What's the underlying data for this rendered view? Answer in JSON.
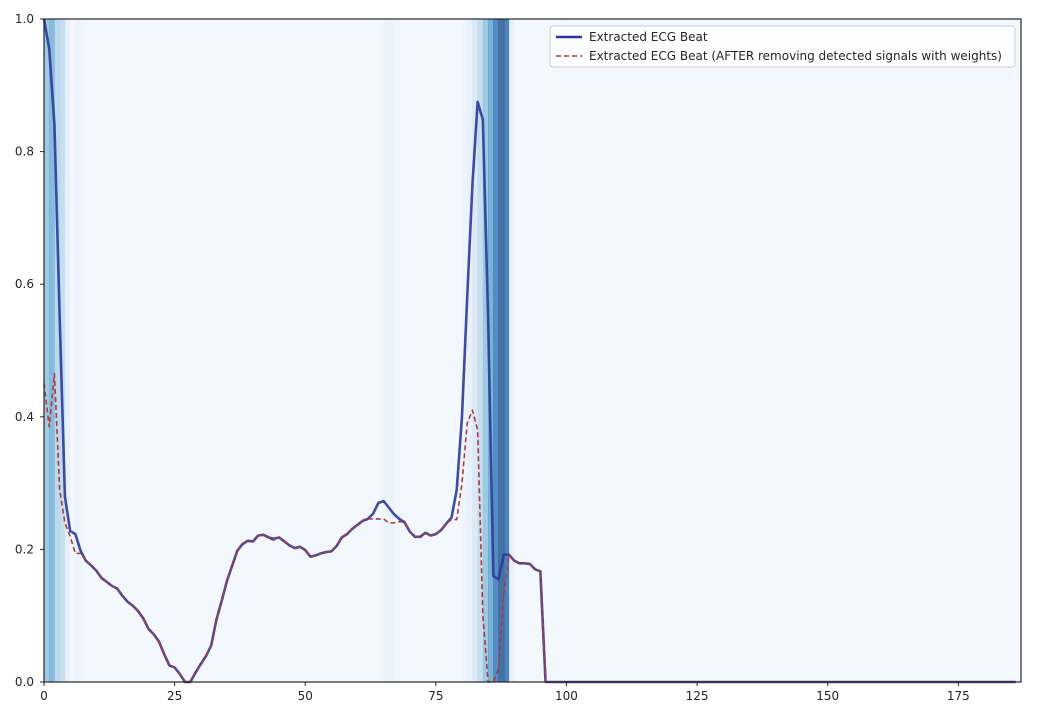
{
  "chart_data": {
    "type": "line",
    "title": "",
    "xlabel": "",
    "ylabel": "",
    "xlim": [
      0,
      187
    ],
    "ylim": [
      0,
      1
    ],
    "xticks": [
      0,
      25,
      50,
      75,
      100,
      125,
      150,
      175
    ],
    "yticks": [
      0.0,
      0.2,
      0.4,
      0.6,
      0.8,
      1.0
    ],
    "grid": false,
    "legend_position": "top-right",
    "background_heatmap": {
      "colormap": "Blues",
      "description_levels": "0 = lightest, 1 = darkest",
      "x": [
        0,
        1,
        2,
        3,
        4,
        5,
        6,
        7,
        8,
        9,
        10,
        11,
        12,
        13,
        14,
        15,
        16,
        17,
        18,
        19,
        20,
        21,
        22,
        23,
        24,
        25,
        26,
        27,
        28,
        29,
        30,
        31,
        32,
        33,
        34,
        35,
        36,
        37,
        38,
        39,
        40,
        41,
        42,
        43,
        44,
        45,
        46,
        47,
        48,
        49,
        50,
        51,
        52,
        53,
        54,
        55,
        56,
        57,
        58,
        59,
        60,
        61,
        62,
        63,
        64,
        65,
        66,
        67,
        68,
        69,
        70,
        71,
        72,
        73,
        74,
        75,
        76,
        77,
        78,
        79,
        80,
        81,
        82,
        83,
        84,
        85,
        86,
        87,
        88,
        89,
        90,
        91,
        92,
        93,
        94,
        95,
        96,
        97,
        98,
        99
      ],
      "weights": [
        0.45,
        0.55,
        0.35,
        0.3,
        0.1,
        0.02,
        0.08,
        0.04,
        0.02,
        0.02,
        0.03,
        0.02,
        0.02,
        0.02,
        0.02,
        0.02,
        0.02,
        0.02,
        0.02,
        0.02,
        0.02,
        0.02,
        0.02,
        0.02,
        0.02,
        0.02,
        0.02,
        0.02,
        0.02,
        0.02,
        0.02,
        0.02,
        0.02,
        0.02,
        0.02,
        0.02,
        0.02,
        0.02,
        0.02,
        0.02,
        0.02,
        0.02,
        0.03,
        0.03,
        0.03,
        0.03,
        0.02,
        0.02,
        0.02,
        0.02,
        0.02,
        0.02,
        0.02,
        0.02,
        0.02,
        0.02,
        0.02,
        0.02,
        0.02,
        0.02,
        0.02,
        0.02,
        0.02,
        0.02,
        0.04,
        0.06,
        0.08,
        0.05,
        0.03,
        0.02,
        0.02,
        0.02,
        0.02,
        0.02,
        0.02,
        0.02,
        0.02,
        0.02,
        0.02,
        0.02,
        0.06,
        0.1,
        0.18,
        0.3,
        0.45,
        0.6,
        0.8,
        0.95,
        0.85,
        0.1,
        0.02,
        0.02,
        0.02,
        0.02,
        0.02,
        0.02,
        0.02,
        0.02,
        0.02,
        0.02
      ]
    },
    "x": [
      0,
      1,
      2,
      3,
      4,
      5,
      6,
      7,
      8,
      9,
      10,
      11,
      12,
      13,
      14,
      15,
      16,
      17,
      18,
      19,
      20,
      21,
      22,
      23,
      24,
      25,
      26,
      27,
      28,
      29,
      30,
      31,
      32,
      33,
      34,
      35,
      36,
      37,
      38,
      39,
      40,
      41,
      42,
      43,
      44,
      45,
      46,
      47,
      48,
      49,
      50,
      51,
      52,
      53,
      54,
      55,
      56,
      57,
      58,
      59,
      60,
      61,
      62,
      63,
      64,
      65,
      66,
      67,
      68,
      69,
      70,
      71,
      72,
      73,
      74,
      75,
      76,
      77,
      78,
      79,
      80,
      81,
      82,
      83,
      84,
      85,
      86,
      87,
      88,
      89,
      90,
      91,
      92,
      93,
      94,
      95,
      96,
      97,
      186
    ],
    "series": [
      {
        "name": "Extracted ECG Beat",
        "color": "#2b3a9a",
        "style": "solid",
        "values": [
          1.0,
          0.955,
          0.84,
          0.55,
          0.28,
          0.228,
          0.223,
          0.198,
          0.183,
          0.176,
          0.168,
          0.157,
          0.151,
          0.145,
          0.141,
          0.13,
          0.121,
          0.115,
          0.107,
          0.096,
          0.08,
          0.072,
          0.061,
          0.042,
          0.025,
          0.022,
          0.012,
          0.0,
          0.0,
          0.014,
          0.027,
          0.039,
          0.055,
          0.094,
          0.122,
          0.152,
          0.175,
          0.198,
          0.208,
          0.213,
          0.212,
          0.221,
          0.222,
          0.218,
          0.216,
          0.218,
          0.212,
          0.206,
          0.202,
          0.204,
          0.199,
          0.189,
          0.191,
          0.194,
          0.196,
          0.197,
          0.205,
          0.218,
          0.223,
          0.231,
          0.237,
          0.243,
          0.246,
          0.254,
          0.27,
          0.273,
          0.263,
          0.253,
          0.246,
          0.241,
          0.227,
          0.219,
          0.219,
          0.225,
          0.221,
          0.223,
          0.229,
          0.239,
          0.248,
          0.29,
          0.4,
          0.58,
          0.75,
          0.875,
          0.848,
          0.55,
          0.16,
          0.155,
          0.192,
          0.192,
          0.183,
          0.179,
          0.179,
          0.178,
          0.17,
          0.167,
          0.0,
          0.0,
          0.0
        ]
      },
      {
        "name": "Extracted ECG Beat (AFTER removing detected signals with weights)",
        "color": "#b03a3a",
        "style": "dashed",
        "values": [
          0.45,
          0.385,
          0.465,
          0.29,
          0.24,
          0.22,
          0.194,
          0.194,
          0.183,
          0.176,
          0.168,
          0.157,
          0.151,
          0.145,
          0.141,
          0.13,
          0.121,
          0.115,
          0.107,
          0.096,
          0.08,
          0.072,
          0.061,
          0.042,
          0.025,
          0.022,
          0.012,
          0.0,
          0.0,
          0.014,
          0.027,
          0.039,
          0.055,
          0.094,
          0.122,
          0.152,
          0.175,
          0.198,
          0.208,
          0.213,
          0.212,
          0.221,
          0.222,
          0.216,
          0.214,
          0.218,
          0.212,
          0.206,
          0.202,
          0.204,
          0.199,
          0.189,
          0.191,
          0.194,
          0.196,
          0.197,
          0.205,
          0.218,
          0.223,
          0.231,
          0.237,
          0.243,
          0.246,
          0.246,
          0.246,
          0.246,
          0.24,
          0.24,
          0.242,
          0.241,
          0.227,
          0.219,
          0.219,
          0.225,
          0.221,
          0.223,
          0.229,
          0.239,
          0.245,
          0.245,
          0.3,
          0.39,
          0.41,
          0.38,
          0.1,
          0.0,
          0.0,
          0.02,
          0.13,
          0.192,
          0.183,
          0.179,
          0.179,
          0.178,
          0.17,
          0.167,
          0.0,
          0.0,
          0.0
        ]
      }
    ]
  }
}
